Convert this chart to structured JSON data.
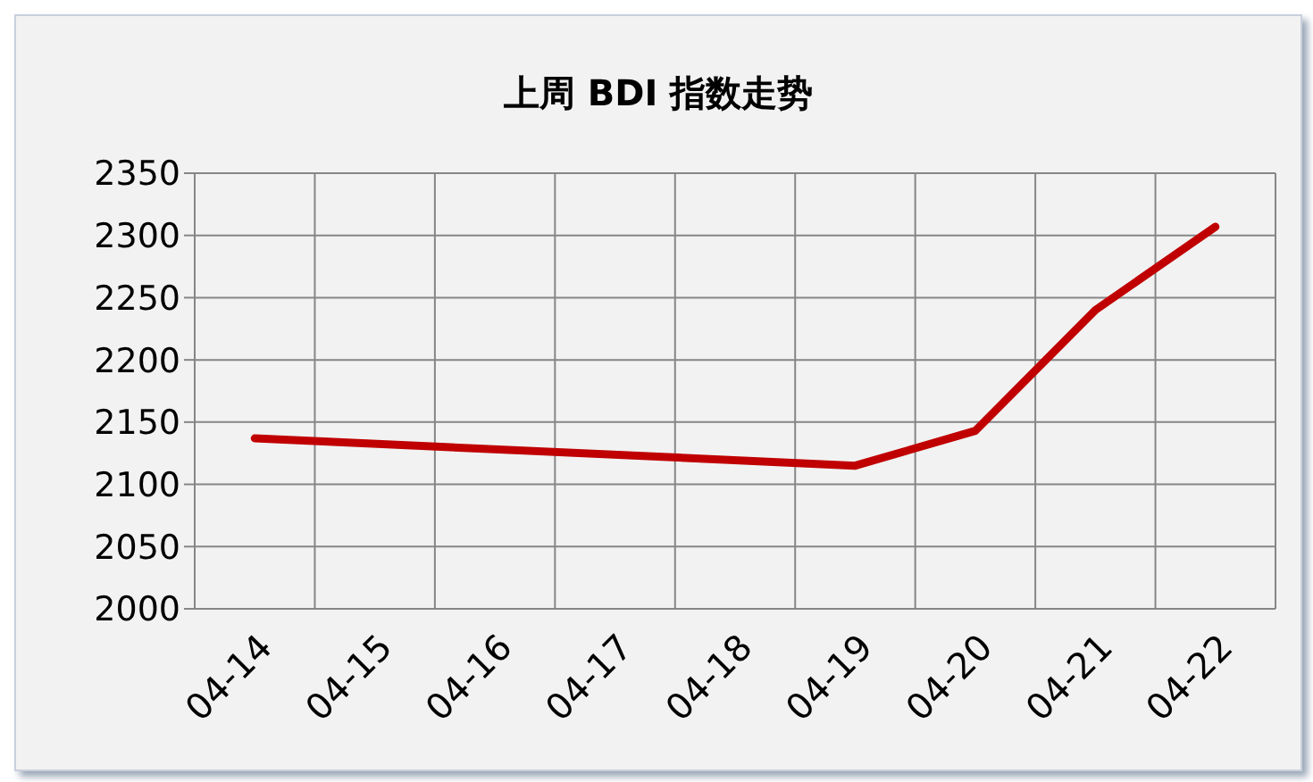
{
  "chart_data": {
    "type": "line",
    "title": "上周 BDI 指数走势",
    "categories": [
      "04-14",
      "04-15",
      "04-16",
      "04-17",
      "04-18",
      "04-19",
      "04-20",
      "04-21",
      "04-22"
    ],
    "series": [
      {
        "color": "#c00000",
        "values": [
          2137,
          null,
          null,
          null,
          null,
          2115,
          2143,
          2240,
          2307
        ]
      }
    ],
    "ylim": [
      2000,
      2350
    ],
    "yticks": [
      2000,
      2050,
      2100,
      2150,
      2200,
      2250,
      2300,
      2350
    ],
    "grid": true,
    "legend": false,
    "marker": "none",
    "line_style": "solid"
  }
}
